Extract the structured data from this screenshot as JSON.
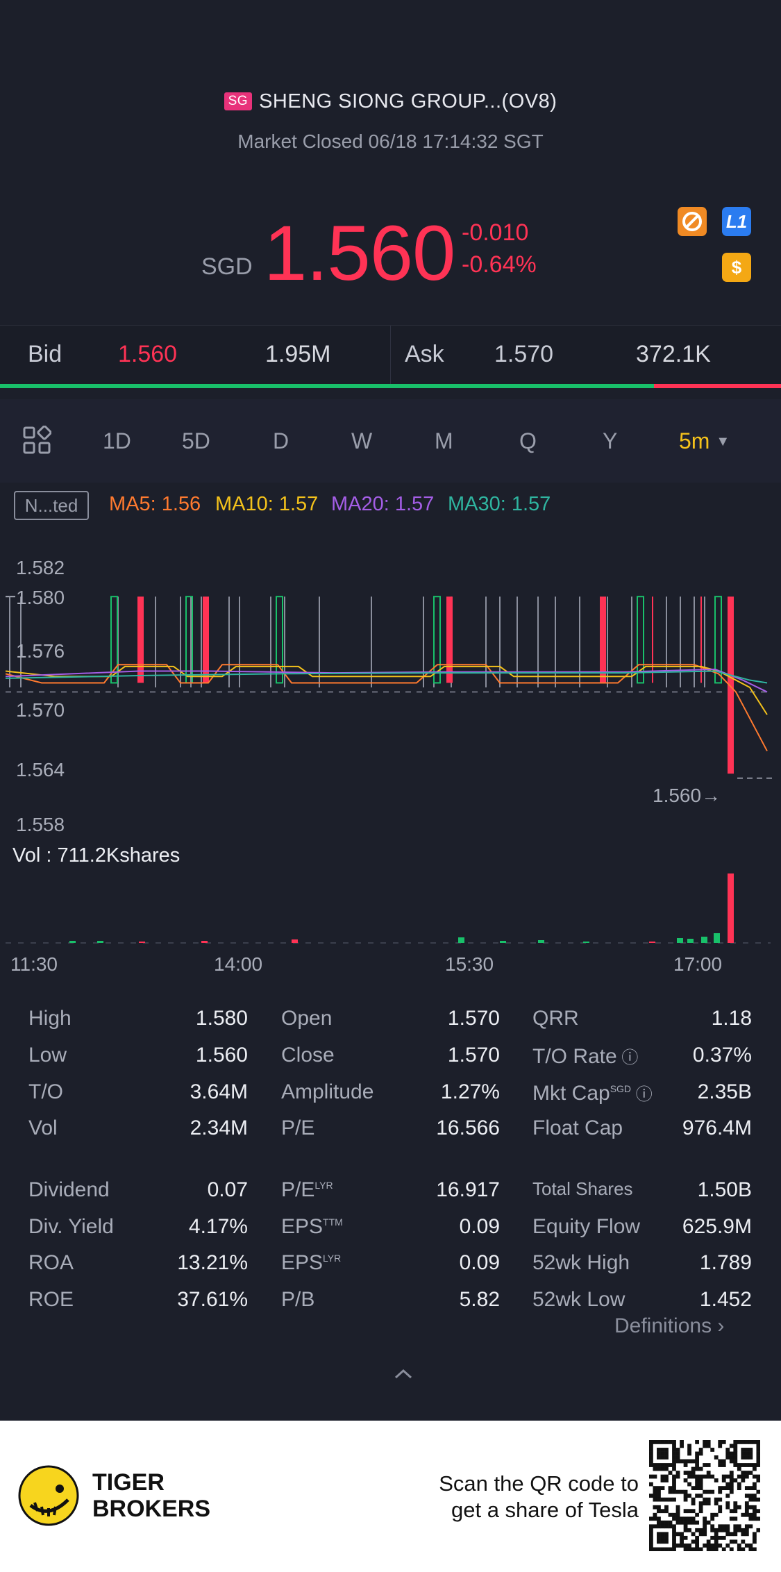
{
  "header": {
    "region_badge": "SG",
    "title": "SHENG SIONG GROUP...(OV8)",
    "status": "Market Closed 06/18 17:14:32 SGT"
  },
  "quote": {
    "currency": "SGD",
    "price": "1.560",
    "change": "-0.010",
    "change_pct": "-0.64%",
    "icons": [
      "no-short-icon",
      "level1-icon",
      "dollar-icon"
    ],
    "l1_label": "L1",
    "dollar_label": "$"
  },
  "orderbook": {
    "bid_label": "Bid",
    "bid_price": "1.560",
    "bid_size": "1.95M",
    "ask_label": "Ask",
    "ask_price": "1.570",
    "ask_size": "372.1K",
    "bid_fraction": 0.837
  },
  "tabs": [
    "1D",
    "5D",
    "D",
    "W",
    "M",
    "Q",
    "Y"
  ],
  "active_tab": "5m",
  "indicator_button": "N...ted",
  "ma": {
    "ma5": "MA5: 1.56",
    "ma10": "MA10: 1.57",
    "ma20": "MA20: 1.57",
    "ma30": "MA30: 1.57",
    "colors": {
      "ma5": "#ff7a2f",
      "ma10": "#f4c21b",
      "ma20": "#a45ee6",
      "ma30": "#2fb5a0"
    }
  },
  "chart_data": {
    "type": "candlestick",
    "y_ticks": [
      "1.582",
      "1.580",
      "1.576",
      "1.570",
      "1.564",
      "1.558"
    ],
    "ylim": [
      1.557,
      1.583
    ],
    "x_ticks": [
      "11:30",
      "14:00",
      "15:30",
      "17:00"
    ],
    "last_price_label": "1.560",
    "volume_label": "Vol : 711.2Kshares",
    "colors": {
      "up": "#19c06a",
      "down": "#ff3355",
      "doji": "#8a8e9c"
    }
  },
  "stats": {
    "col1": [
      {
        "label": "High",
        "value": "1.580"
      },
      {
        "label": "Low",
        "value": "1.560"
      },
      {
        "label": "T/O",
        "value": "3.64M"
      },
      {
        "label": "Vol",
        "value": "2.34M"
      },
      {
        "label": "Dividend",
        "value": "0.07"
      },
      {
        "label": "Div. Yield",
        "value": "4.17%"
      },
      {
        "label": "ROA",
        "value": "13.21%"
      },
      {
        "label": "ROE",
        "value": "37.61%"
      }
    ],
    "col2": [
      {
        "label": "Open",
        "value": "1.570",
        "sup": ""
      },
      {
        "label": "Close",
        "value": "1.570",
        "sup": ""
      },
      {
        "label": "Amplitude",
        "value": "1.27%",
        "sup": ""
      },
      {
        "label": "P/E",
        "value": "16.566",
        "sup": ""
      },
      {
        "label": "P/E",
        "value": "16.917",
        "sup": "LYR"
      },
      {
        "label": "EPS",
        "value": "0.09",
        "sup": "TTM"
      },
      {
        "label": "EPS",
        "value": "0.09",
        "sup": "LYR"
      },
      {
        "label": "P/B",
        "value": "5.82",
        "sup": ""
      }
    ],
    "col3": [
      {
        "label": "QRR",
        "value": "1.18",
        "sup": ""
      },
      {
        "label": "T/O Rate",
        "value": "0.37%",
        "sup": ""
      },
      {
        "label": "Mkt Cap",
        "value": "2.35B",
        "sup": "SGD"
      },
      {
        "label": "Float Cap",
        "value": "976.4M",
        "sup": ""
      },
      {
        "label": "Total Shares",
        "value": "1.50B",
        "sup": ""
      },
      {
        "label": "Equity Flow",
        "value": "625.9M",
        "sup": ""
      },
      {
        "label": "52wk High",
        "value": "1.789",
        "sup": ""
      },
      {
        "label": "52wk Low",
        "value": "1.452",
        "sup": ""
      }
    ],
    "definitions": "Definitions"
  },
  "footer": {
    "brand_line1": "TIGER",
    "brand_line2": "BROKERS",
    "promo_line1": "Scan the QR code to",
    "promo_line2": "get a share of Tesla"
  }
}
